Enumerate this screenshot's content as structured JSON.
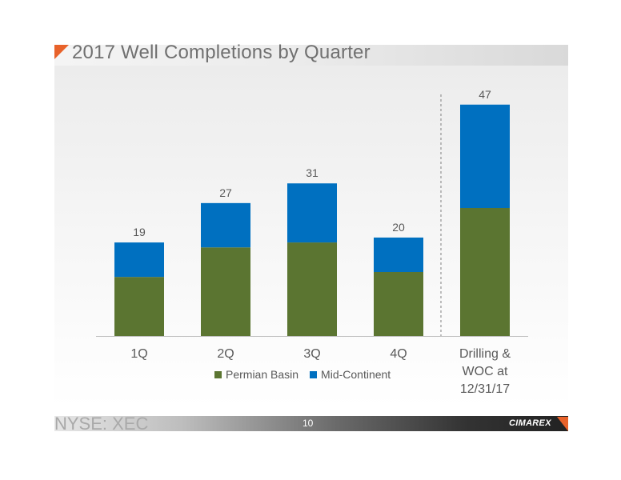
{
  "slide": {
    "title": "2017 Well Completions by Quarter",
    "footer_ticker": "NYSE: XEC",
    "page_number": "10",
    "logo_text": "CIMAREX",
    "accent_color": "#e8622a"
  },
  "chart_data": {
    "type": "bar",
    "stacked": true,
    "categories": [
      "1Q",
      "2Q",
      "3Q",
      "4Q",
      "Drilling & WOC at 12/31/17"
    ],
    "category_lines": [
      [
        "1Q"
      ],
      [
        "2Q"
      ],
      [
        "3Q"
      ],
      [
        "4Q"
      ],
      [
        "Drilling &",
        "WOC at",
        "12/31/17"
      ]
    ],
    "series": [
      {
        "name": "Permian Basin",
        "color": "#5b7531",
        "values": [
          12,
          18,
          19,
          13,
          26
        ]
      },
      {
        "name": "Mid-Continent",
        "color": "#0070c0",
        "values": [
          7,
          9,
          12,
          7,
          21
        ]
      }
    ],
    "totals": [
      19,
      27,
      31,
      20,
      47
    ],
    "ylim": [
      0,
      52
    ],
    "grid": false,
    "divider_before_category": 4,
    "legend_position": "bottom",
    "title": "",
    "xlabel": "",
    "ylabel": ""
  }
}
